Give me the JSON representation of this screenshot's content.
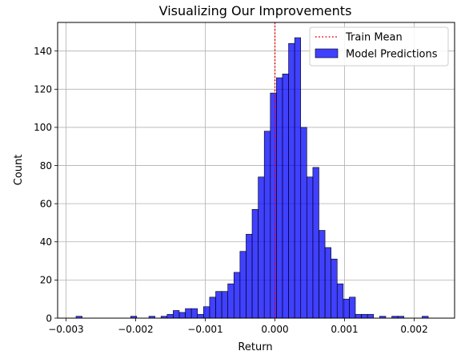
{
  "chart_data": {
    "type": "histogram",
    "title": "Visualizing Our Improvements",
    "xlabel": "Return",
    "ylabel": "Count",
    "xlim": [
      -0.00312,
      0.00258
    ],
    "ylim": [
      0,
      155
    ],
    "x_ticks": [
      -0.003,
      -0.002,
      -0.001,
      0.0,
      0.001,
      0.002
    ],
    "x_tick_labels": [
      "−0.003",
      "−0.002",
      "−0.001",
      "0.000",
      "0.001",
      "0.002"
    ],
    "y_ticks": [
      0,
      20,
      40,
      60,
      80,
      100,
      120,
      140
    ],
    "y_tick_labels": [
      "0",
      "20",
      "40",
      "60",
      "80",
      "100",
      "120",
      "140"
    ],
    "grid": true,
    "legend_position": "top-right",
    "bin_start": -0.002856,
    "bin_width": 8.72e-05,
    "series": [
      {
        "name": "Model Predictions",
        "kind": "histogram",
        "color": "#0000ff",
        "counts": [
          1,
          0,
          0,
          0,
          0,
          0,
          0,
          0,
          0,
          1,
          0,
          0,
          1,
          0,
          1,
          2,
          4,
          3,
          5,
          5,
          2,
          6,
          11,
          14,
          14,
          18,
          24,
          35,
          44,
          57,
          74,
          98,
          118,
          126,
          128,
          144,
          147,
          100,
          74,
          79,
          46,
          37,
          31,
          18,
          10,
          11,
          2,
          2,
          2,
          0,
          1,
          0,
          1,
          1,
          0,
          0,
          0,
          1
        ]
      },
      {
        "name": "Train Mean",
        "kind": "vline",
        "x": 0.0,
        "color": "#ff0000",
        "style": "dotted"
      }
    ]
  }
}
